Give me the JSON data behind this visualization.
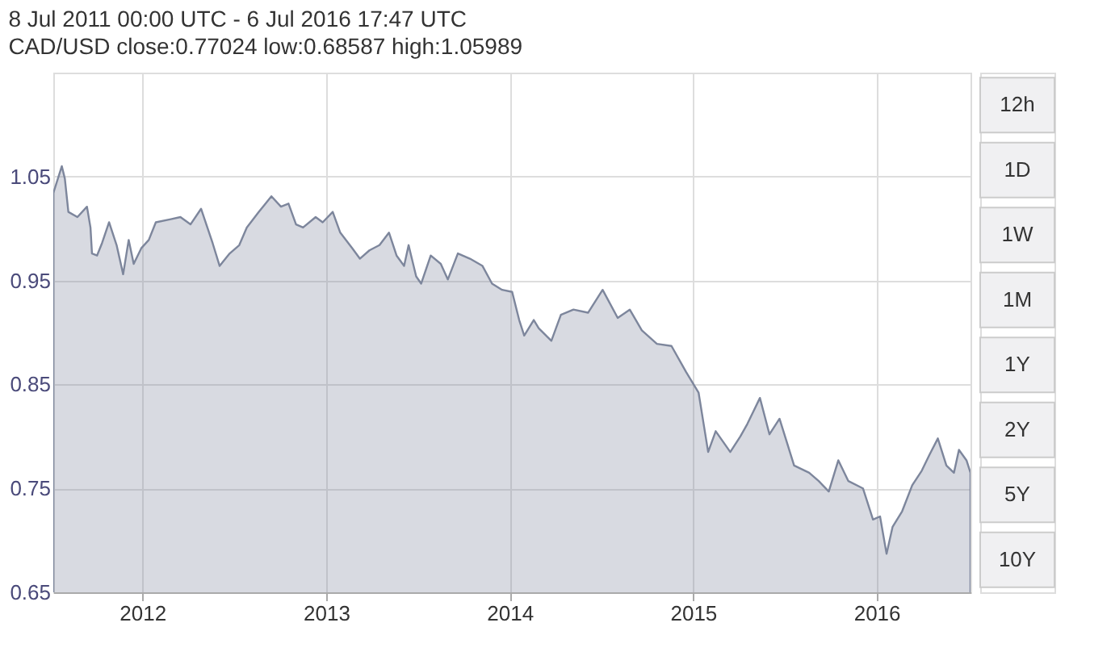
{
  "chart_data": {
    "type": "area",
    "title": "8 Jul 2011 00:00 UTC - 6 Jul 2016 17:47 UTC",
    "subtitle": "CAD/USD close:0.77024 low:0.68587 high:1.05989",
    "annotations": [
      "12h",
      "1D",
      "1W",
      "1M",
      "1Y",
      "2Y",
      "5Y",
      "10Y"
    ],
    "x": [
      "2011-07-08",
      "2011-07-25",
      "2011-07-31",
      "2011-08-07",
      "2011-08-25",
      "2011-09-13",
      "2011-09-20",
      "2011-09-23",
      "2011-10-03",
      "2011-10-13",
      "2011-10-27",
      "2011-11-11",
      "2011-11-24",
      "2011-12-05",
      "2011-12-15",
      "2011-12-30",
      "2012-01-14",
      "2012-01-28",
      "2012-02-27",
      "2012-03-17",
      "2012-04-06",
      "2012-04-27",
      "2012-05-20",
      "2012-06-03",
      "2012-06-23",
      "2012-07-12",
      "2012-07-27",
      "2012-08-20",
      "2012-09-14",
      "2012-10-03",
      "2012-10-18",
      "2012-11-02",
      "2012-11-16",
      "2012-12-11",
      "2012-12-25",
      "2013-01-14",
      "2013-01-29",
      "2013-02-22",
      "2013-03-09",
      "2013-03-28",
      "2013-04-17",
      "2013-05-06",
      "2013-05-21",
      "2013-06-05",
      "2013-06-14",
      "2013-06-29",
      "2013-07-09",
      "2013-07-28",
      "2013-08-17",
      "2013-08-31",
      "2013-09-20",
      "2013-10-14",
      "2013-11-08",
      "2013-11-27",
      "2013-12-17",
      "2014-01-06",
      "2014-01-20",
      "2014-01-30",
      "2014-02-18",
      "2014-02-28",
      "2014-03-25",
      "2014-04-13",
      "2014-05-08",
      "2014-06-06",
      "2014-07-05",
      "2014-08-04",
      "2014-08-28",
      "2014-09-21",
      "2014-10-21",
      "2014-11-19",
      "2014-12-18",
      "2015-01-12",
      "2015-01-22",
      "2015-01-31",
      "2015-02-15",
      "2015-03-16",
      "2015-04-05",
      "2015-04-19",
      "2015-05-14",
      "2015-06-02",
      "2015-06-22",
      "2015-07-21",
      "2015-08-20",
      "2015-09-08",
      "2015-09-28",
      "2015-10-17",
      "2015-11-06",
      "2015-12-05",
      "2015-12-25",
      "2016-01-08",
      "2016-01-21",
      "2016-02-02",
      "2016-02-21",
      "2016-03-12",
      "2016-03-31",
      "2016-04-15",
      "2016-05-02",
      "2016-05-19",
      "2016-06-03",
      "2016-06-13",
      "2016-06-28",
      "2016-07-06"
    ],
    "series": [
      {
        "color": "#7d869c",
        "values": [
          1.034,
          1.06,
          1.048,
          1.016,
          1.011,
          1.021,
          1.001,
          0.976,
          0.974,
          0.986,
          1.006,
          0.984,
          0.956,
          0.989,
          0.966,
          0.981,
          0.989,
          1.006,
          1.009,
          1.011,
          1.004,
          1.019,
          0.986,
          0.964,
          0.976,
          0.984,
          1.001,
          1.016,
          1.031,
          1.021,
          1.024,
          1.004,
          1.001,
          1.011,
          1.006,
          1.016,
          0.996,
          0.981,
          0.971,
          0.979,
          0.984,
          0.996,
          0.974,
          0.964,
          0.984,
          0.954,
          0.947,
          0.974,
          0.966,
          0.951,
          0.976,
          0.971,
          0.964,
          0.947,
          0.941,
          0.939,
          0.912,
          0.897,
          0.912,
          0.904,
          0.892,
          0.917,
          0.922,
          0.919,
          0.941,
          0.914,
          0.922,
          0.902,
          0.889,
          0.887,
          0.862,
          0.842,
          0.812,
          0.785,
          0.805,
          0.785,
          0.8,
          0.812,
          0.837,
          0.802,
          0.817,
          0.772,
          0.765,
          0.757,
          0.747,
          0.777,
          0.757,
          0.75,
          0.72,
          0.723,
          0.687,
          0.713,
          0.728,
          0.753,
          0.767,
          0.782,
          0.798,
          0.772,
          0.765,
          0.787,
          0.777,
          0.765
        ]
      }
    ],
    "xlim": [
      "2011-07-08",
      "2016-07-06"
    ],
    "xticks": [
      {
        "value": "2012-01-01",
        "label": "2012"
      },
      {
        "value": "2013-01-01",
        "label": "2013"
      },
      {
        "value": "2014-01-01",
        "label": "2014"
      },
      {
        "value": "2015-01-01",
        "label": "2015"
      },
      {
        "value": "2016-01-01",
        "label": "2016"
      }
    ],
    "ylim": [
      0.65,
      1.15
    ],
    "yticks": [
      0.65,
      0.75,
      0.85,
      0.95,
      1.05
    ],
    "grid": true
  }
}
